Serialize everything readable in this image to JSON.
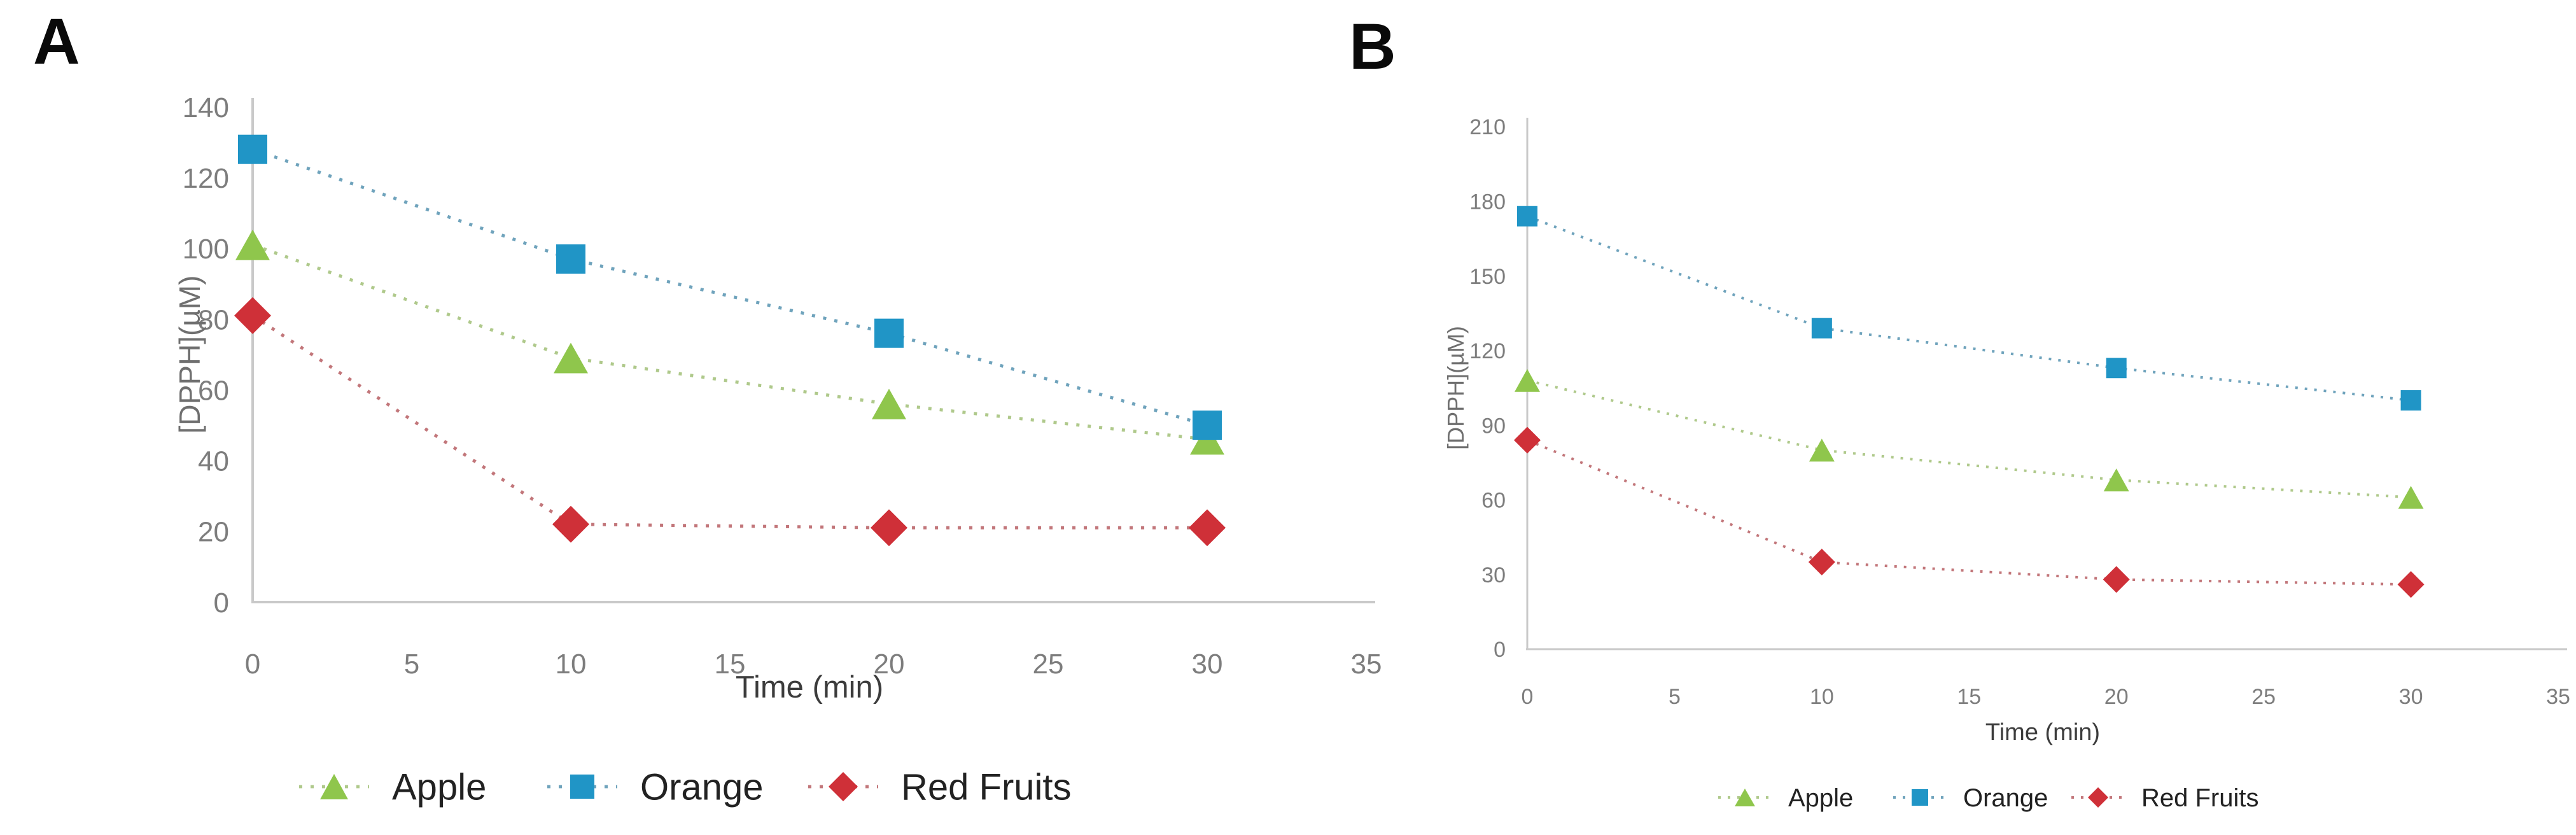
{
  "figure": {
    "panels": [
      {
        "letter": "A"
      },
      {
        "letter": "B"
      }
    ]
  },
  "colors": {
    "apple": "#8FC64C",
    "apple_line": "#AFC98B",
    "orange": "#2095C6",
    "orange_line": "#6FA3BC",
    "red": "#CF3038",
    "red_line": "#C2767A",
    "axis": "#C9C9C9",
    "tick_text": "#7D7D7D",
    "y_title_text": "#6F6F6F",
    "x_title_text": "#3C3C3C",
    "legend_text": "#222222",
    "panel_letter": "#0A0A0A"
  },
  "chart_data": [
    {
      "type": "line",
      "panel": "A",
      "title": "",
      "xlabel": "Time (min)",
      "ylabel": "[DPPH](µM)",
      "x": [
        0,
        10,
        20,
        30
      ],
      "xlim": [
        0,
        35
      ],
      "ylim": [
        0,
        140
      ],
      "xticks": [
        0,
        5,
        10,
        15,
        20,
        25,
        30,
        35
      ],
      "yticks": [
        0,
        20,
        40,
        60,
        80,
        100,
        120,
        140
      ],
      "grid": false,
      "legend_position": "bottom",
      "line_style": "dotted",
      "series": [
        {
          "name": "Apple",
          "marker": "triangle",
          "color": "#8FC64C",
          "line_color": "#AFC98B",
          "values": [
            101,
            69,
            56,
            46
          ]
        },
        {
          "name": "Orange",
          "marker": "square",
          "color": "#2095C6",
          "line_color": "#6FA3BC",
          "values": [
            128,
            97,
            76,
            50
          ]
        },
        {
          "name": "Red Fruits",
          "marker": "diamond",
          "color": "#CF3038",
          "line_color": "#C2767A",
          "values": [
            81,
            22,
            21,
            21
          ]
        }
      ]
    },
    {
      "type": "line",
      "panel": "B",
      "title": "",
      "xlabel": "Time (min)",
      "ylabel": "[DPPH](µM)",
      "x": [
        0,
        10,
        20,
        30
      ],
      "xlim": [
        0,
        35
      ],
      "ylim": [
        0,
        210
      ],
      "xticks": [
        0,
        5,
        10,
        15,
        20,
        25,
        30,
        35
      ],
      "yticks": [
        0,
        30,
        60,
        90,
        120,
        150,
        180,
        210
      ],
      "grid": false,
      "legend_position": "bottom",
      "line_style": "dotted",
      "series": [
        {
          "name": "Apple",
          "marker": "triangle",
          "color": "#8FC64C",
          "line_color": "#AFC98B",
          "values": [
            108,
            80,
            68,
            61
          ]
        },
        {
          "name": "Orange",
          "marker": "square",
          "color": "#2095C6",
          "line_color": "#6FA3BC",
          "values": [
            174,
            129,
            113,
            100
          ]
        },
        {
          "name": "Red Fruits",
          "marker": "diamond",
          "color": "#CF3038",
          "line_color": "#C2767A",
          "values": [
            84,
            35,
            28,
            26
          ]
        }
      ]
    }
  ]
}
